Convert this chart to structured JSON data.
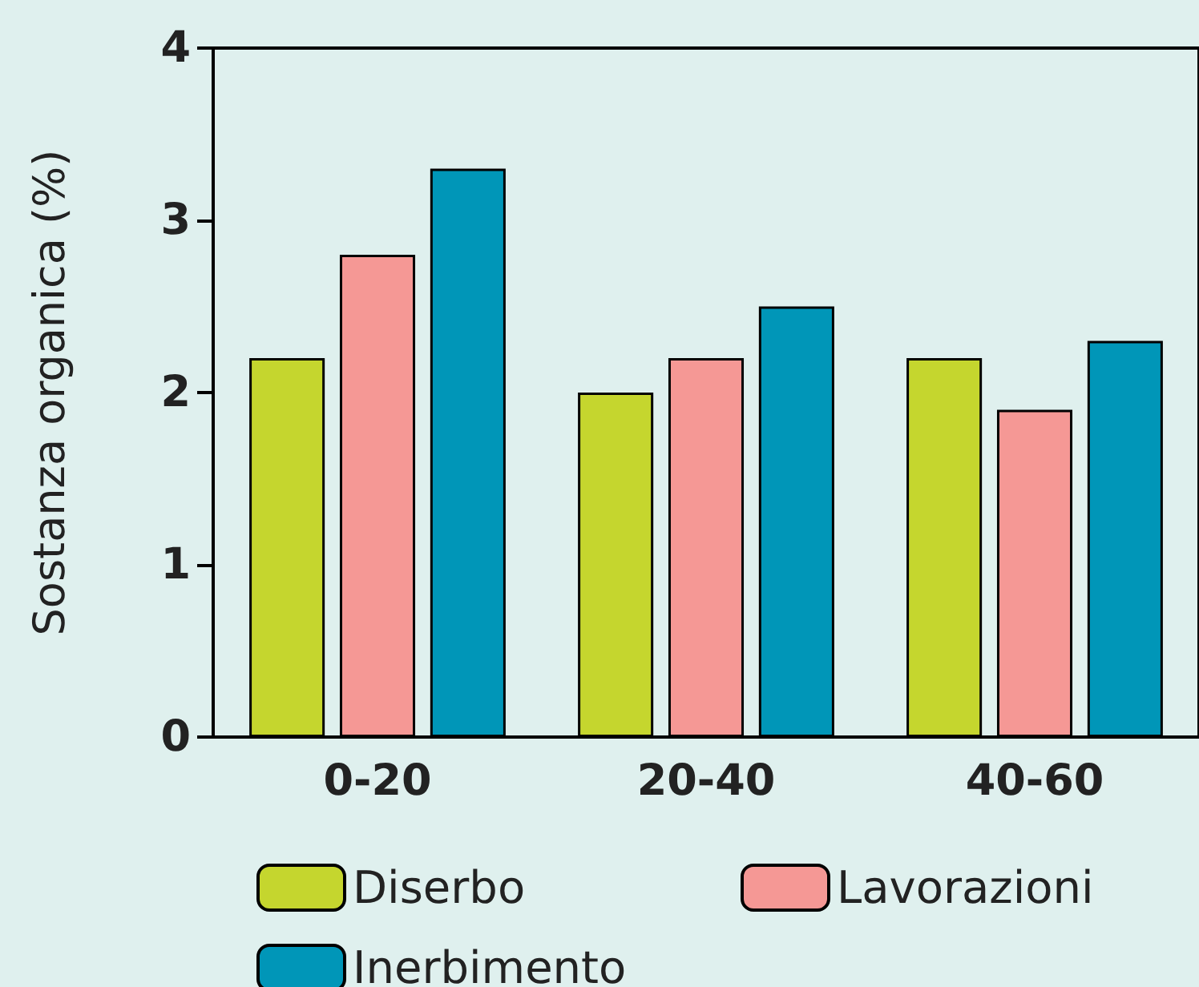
{
  "chart_data": {
    "type": "bar",
    "ylabel": "Sostanza organica (%)",
    "categories": [
      "0-20",
      "20-40",
      "40-60"
    ],
    "series": [
      {
        "name": "Diserbo",
        "color": "#c5d62e",
        "values": [
          2.2,
          2.0,
          2.2
        ]
      },
      {
        "name": "Lavorazioni",
        "color": "#f59895",
        "values": [
          2.8,
          2.2,
          1.9
        ]
      },
      {
        "name": "Inerbimento",
        "color": "#0096b8",
        "values": [
          3.3,
          2.5,
          2.3
        ]
      }
    ],
    "ylim": [
      0,
      4
    ],
    "yticks": [
      0,
      1,
      2,
      3,
      4
    ],
    "legend": "bottom"
  }
}
